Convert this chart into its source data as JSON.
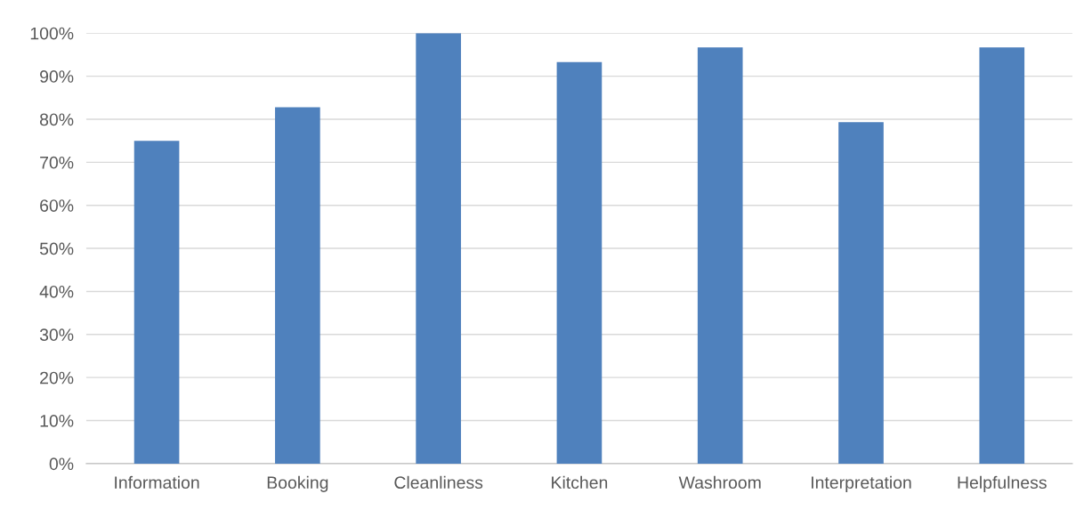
{
  "chart_data": {
    "type": "bar",
    "categories": [
      "Information",
      "Booking",
      "Cleanliness",
      "Kitchen",
      "Washroom",
      "Interpretation",
      "Helpfulness"
    ],
    "values": [
      75,
      82.8,
      100,
      93.3,
      96.7,
      79.3,
      96.7
    ],
    "color": "#4f81bd",
    "ylim": [
      0,
      100
    ],
    "yticks": [
      {
        "value": 0,
        "label": "0%"
      },
      {
        "value": 10,
        "label": "10%"
      },
      {
        "value": 20,
        "label": "20%"
      },
      {
        "value": 30,
        "label": "30%"
      },
      {
        "value": 40,
        "label": "40%"
      },
      {
        "value": 50,
        "label": "50%"
      },
      {
        "value": 60,
        "label": "60%"
      },
      {
        "value": 70,
        "label": "70%"
      },
      {
        "value": 80,
        "label": "80%"
      },
      {
        "value": 90,
        "label": "90%"
      },
      {
        "value": 100,
        "label": "100%"
      }
    ],
    "grid": "y"
  }
}
